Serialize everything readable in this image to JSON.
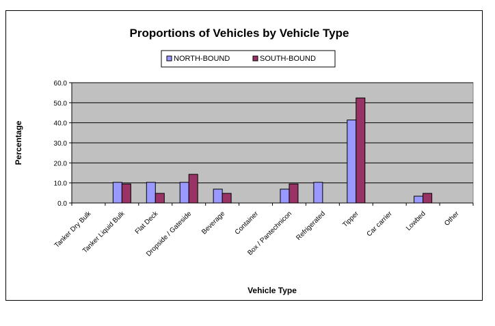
{
  "chart_data": {
    "type": "bar",
    "title": "Proportions of Vehicles by Vehicle Type",
    "xlabel": "Vehicle Type",
    "ylabel": "Percentage",
    "ylim": [
      0,
      60
    ],
    "yticks": [
      "0.0",
      "10.0",
      "20.0",
      "30.0",
      "40.0",
      "50.0",
      "60.0"
    ],
    "grid": true,
    "legend_position": "top",
    "categories": [
      "Tanker Dry Bulk",
      "Tanker Liquid Bulk",
      "Flat Deck",
      "Dropside / Gateside",
      "Beverage",
      "Container",
      "Box / Pantechnicon",
      "Refrigerated",
      "Tipper",
      "Car carrier",
      "Lowbed",
      "Other"
    ],
    "series": [
      {
        "name": "NORTH-BOUND",
        "color": "#9999FF",
        "values": [
          0,
          10.3,
          10.3,
          10.3,
          6.9,
          0,
          6.9,
          10.3,
          41.4,
          0,
          3.4,
          0
        ]
      },
      {
        "name": "SOUTH-BOUND",
        "color": "#993366",
        "values": [
          0,
          9.5,
          4.8,
          14.3,
          4.8,
          0,
          9.5,
          0,
          52.4,
          0,
          4.8,
          0
        ]
      }
    ],
    "plot_background": "#C0C0C0"
  }
}
